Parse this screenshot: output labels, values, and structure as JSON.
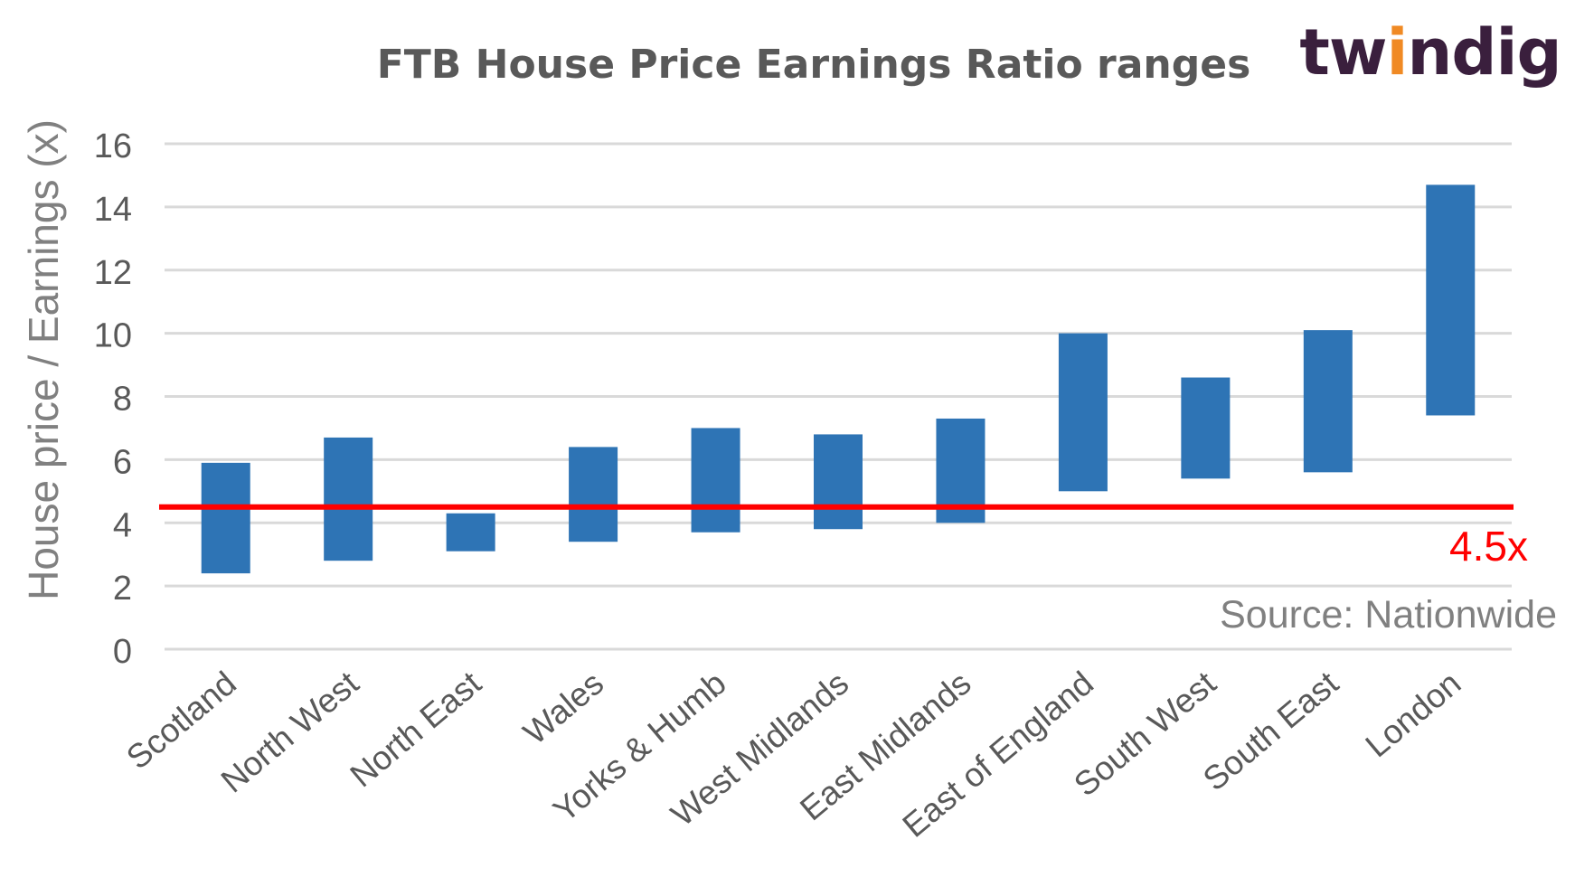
{
  "brand": {
    "logo_text": "twindig",
    "logo_color": "#3a1f3d",
    "dot_color": "#f08a24"
  },
  "chart_data": {
    "type": "bar",
    "subtype": "floating-range",
    "title": "FTB House Price Earnings Ratio ranges",
    "xlabel": "",
    "ylabel": "House price / Earnings (x)",
    "ylim": [
      0,
      16
    ],
    "yticks": [
      0,
      2,
      4,
      6,
      8,
      10,
      12,
      14,
      16
    ],
    "grid": true,
    "categories": [
      "Scotland",
      "North West",
      "North East",
      "Wales",
      "Yorks & Humb",
      "West Midlands",
      "East Midlands",
      "East of England",
      "South West",
      "South East",
      "London"
    ],
    "series": [
      {
        "low": [
          2.4,
          2.8,
          3.1,
          3.4,
          3.7,
          3.8,
          4.0,
          5.0,
          5.4,
          5.6,
          7.4
        ],
        "high": [
          5.9,
          6.7,
          4.3,
          6.4,
          7.0,
          6.8,
          7.3,
          10.0,
          8.6,
          10.1,
          14.7
        ],
        "color": "#2e74b5"
      }
    ],
    "reference_line": {
      "value": 4.5,
      "label": "4.5x",
      "color": "#ff0000"
    },
    "source": "Source: Nationwide"
  }
}
